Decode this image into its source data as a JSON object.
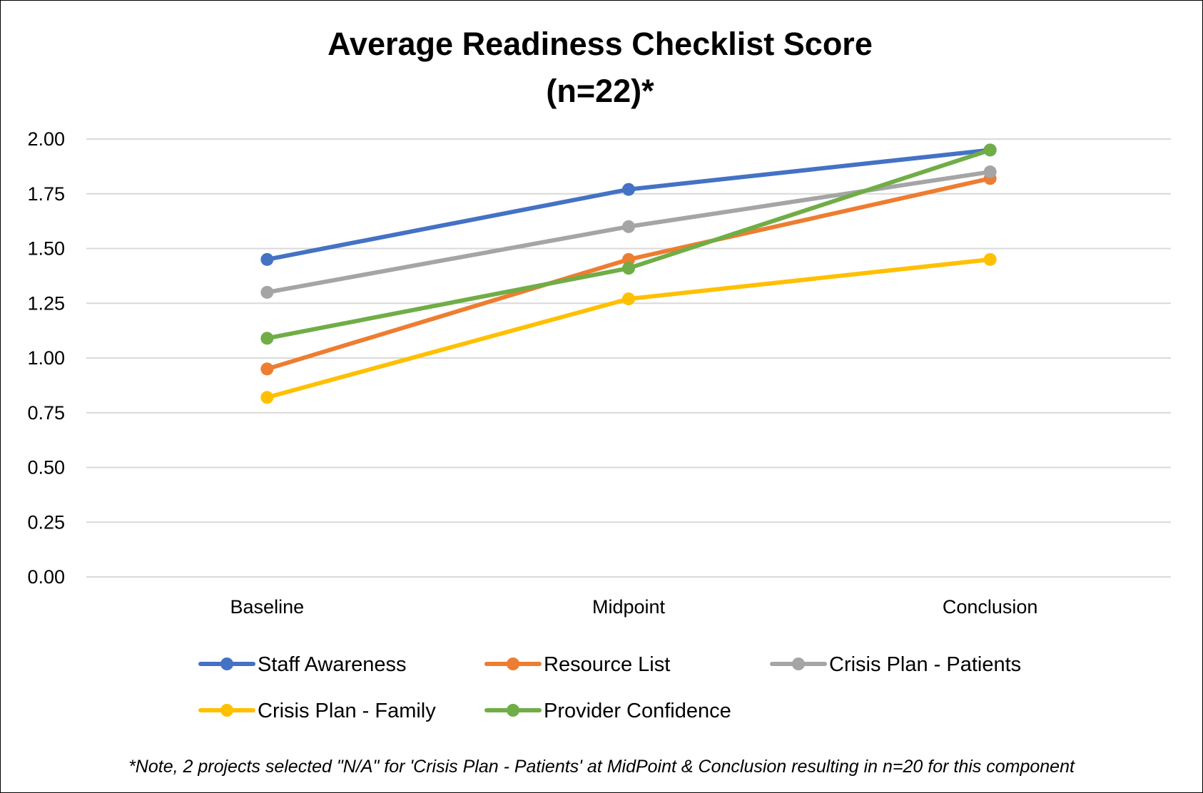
{
  "chart_data": {
    "type": "line",
    "title": "Average Readiness Checklist Score",
    "subtitle": "(n=22)*",
    "xlabel": "",
    "ylabel": "",
    "categories": [
      "Baseline",
      "Midpoint",
      "Conclusion"
    ],
    "ylim": [
      0,
      2
    ],
    "yticks": [
      "0.00",
      "0.25",
      "0.50",
      "0.75",
      "1.00",
      "1.25",
      "1.50",
      "1.75",
      "2.00"
    ],
    "grid": true,
    "legend_position": "bottom",
    "series": [
      {
        "name": "Staff Awareness",
        "color": "#4472C4",
        "values": [
          1.45,
          1.77,
          1.95
        ]
      },
      {
        "name": "Resource List",
        "color": "#ED7D31",
        "values": [
          0.95,
          1.45,
          1.82
        ]
      },
      {
        "name": "Crisis Plan - Patients",
        "color": "#A5A5A5",
        "values": [
          1.3,
          1.6,
          1.85
        ]
      },
      {
        "name": "Crisis Plan - Family",
        "color": "#FFC000",
        "values": [
          0.82,
          1.27,
          1.45
        ]
      },
      {
        "name": "Provider Confidence",
        "color": "#70AD47",
        "values": [
          1.09,
          1.41,
          1.95
        ]
      }
    ],
    "footnote": "*Note, 2 projects selected \"N/A\" for 'Crisis Plan - Patients' at MidPoint & Conclusion resulting in n=20 for this component"
  }
}
